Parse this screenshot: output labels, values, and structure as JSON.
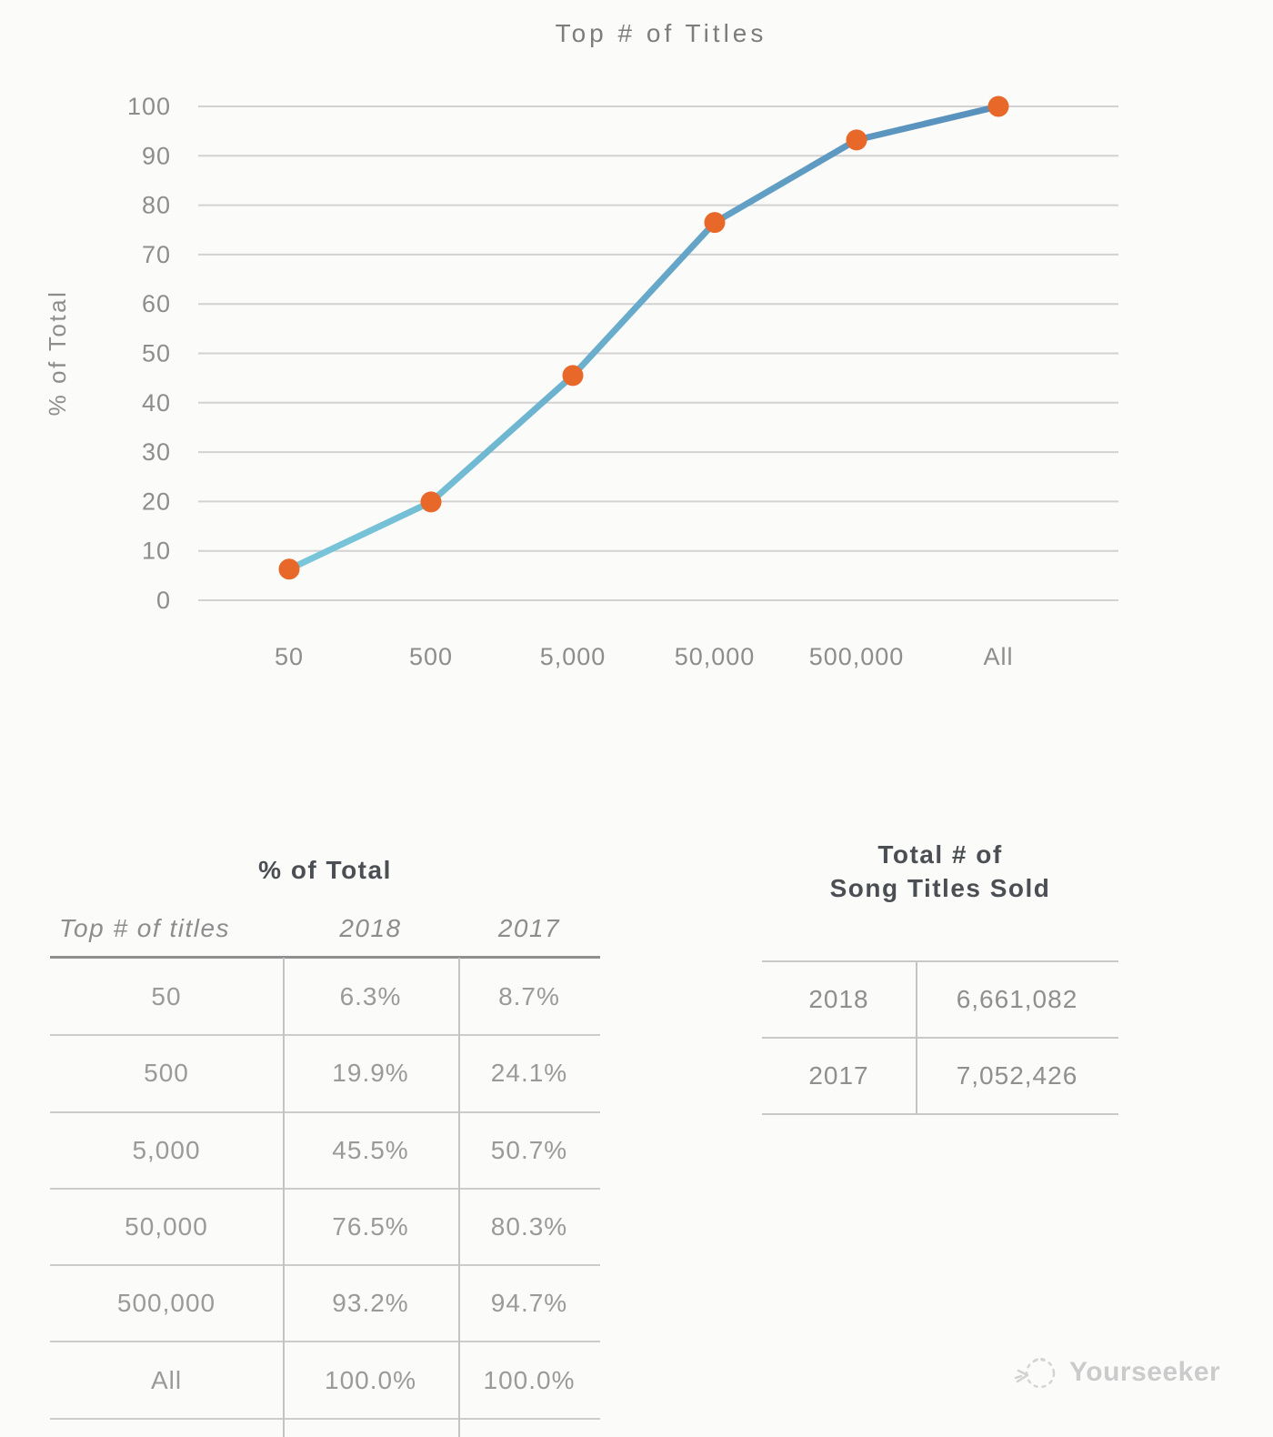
{
  "chart_data": {
    "type": "line",
    "title": "Top # of Titles",
    "xlabel": "",
    "ylabel": "% of Total",
    "categories": [
      "50",
      "500",
      "5,000",
      "50,000",
      "500,000",
      "All"
    ],
    "series": [
      {
        "name": "2018",
        "values": [
          6.3,
          19.9,
          45.5,
          76.5,
          93.2,
          100.0
        ]
      }
    ],
    "ylim": [
      0,
      100
    ],
    "ytick_step": 10,
    "grid": true,
    "legend": "none",
    "colors": {
      "line_gradient_start": "#79C7DA",
      "line_gradient_end": "#5890BC",
      "marker": "#E8682A",
      "gridline": "#D2D2D2",
      "axis_text": "#8D8D8D",
      "title_text": "#7D7D7D"
    }
  },
  "percent_table": {
    "title": "% of Total",
    "columns": [
      "Top # of titles",
      "2018",
      "2017"
    ],
    "rows": [
      [
        "50",
        "6.3%",
        "8.7%"
      ],
      [
        "500",
        "19.9%",
        "24.1%"
      ],
      [
        "5,000",
        "45.5%",
        "50.7%"
      ],
      [
        "50,000",
        "76.5%",
        "80.3%"
      ],
      [
        "500,000",
        "93.2%",
        "94.7%"
      ],
      [
        "All",
        "100.0%",
        "100.0%"
      ]
    ]
  },
  "totals_table": {
    "title_line1": "Total # of",
    "title_line2": "Song Titles Sold",
    "rows": [
      [
        "2018",
        "6,661,082"
      ],
      [
        "2017",
        "7,052,426"
      ]
    ]
  },
  "watermark": {
    "label": "Yourseeker"
  }
}
